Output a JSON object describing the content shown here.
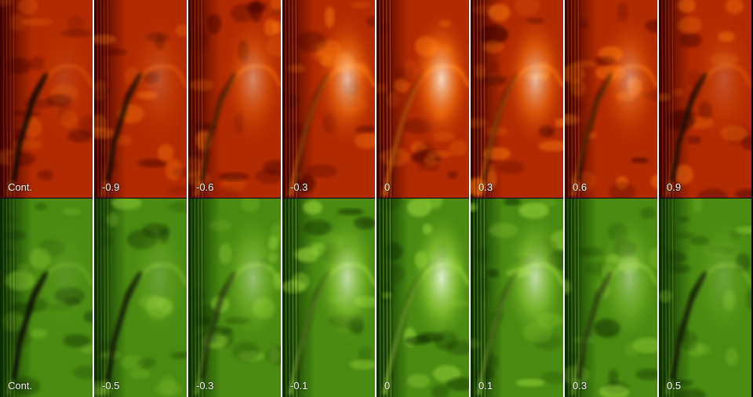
{
  "rows": [
    {
      "name": "top-row",
      "palette": {
        "dark": "#3a0000",
        "mid": "#b22a00",
        "bright": "#ff7a10",
        "white": "#fff4e0"
      },
      "labels": [
        "Cont.",
        "-0.9",
        "-0.6",
        "-0.3",
        "0",
        "0.3",
        "0.6",
        "0.9"
      ]
    },
    {
      "name": "bottom-row",
      "palette": {
        "dark": "#0a2a00",
        "mid": "#4a8a10",
        "bright": "#9ad43a",
        "white": "#f4ffe8"
      },
      "labels": [
        "Cont.",
        "-0.5",
        "-0.3",
        "-0.1",
        "0",
        "0.1",
        "0.3",
        "0.5"
      ]
    }
  ],
  "brightness": [
    0.1,
    0.2,
    0.45,
    0.7,
    0.85,
    0.7,
    0.45,
    0.2
  ]
}
